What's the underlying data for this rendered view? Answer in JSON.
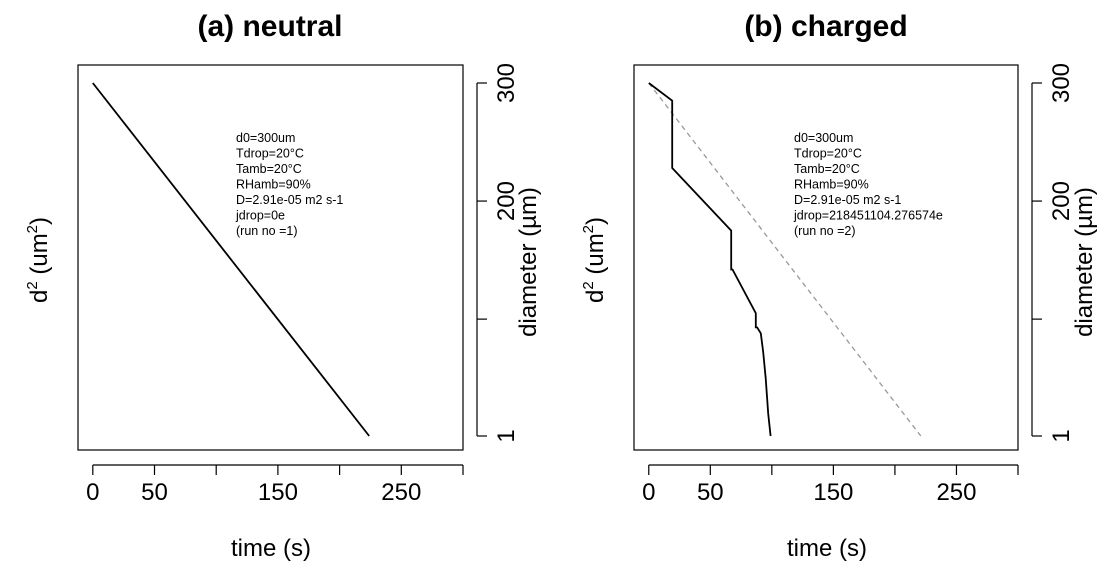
{
  "chart_data": [
    {
      "type": "line",
      "title": "(a) neutral",
      "xlabel": "time (s)",
      "ylabel_left_base": "d",
      "ylabel_left_exp": "2",
      "ylabel_left_unit_open": " (um",
      "ylabel_left_unit_exp": "2",
      "ylabel_left_unit_close": ")",
      "ylabel_right": "diameter (µm)",
      "xlim": [
        -12,
        300
      ],
      "x_ticks": [
        0,
        50,
        100,
        150,
        200,
        250,
        300
      ],
      "x_tick_labels": [
        "0",
        "50",
        "",
        "150",
        "",
        "250",
        ""
      ],
      "y_ticks_right": [
        1,
        100,
        200,
        300
      ],
      "y_tick_labels_right": [
        "1",
        "",
        "200",
        "300"
      ],
      "annotation": [
        "d0=300um",
        "Tdrop=20°C",
        "Tamb=20°C",
        "RHamb=90%",
        "D=2.91e-05 m2 s-1",
        "jdrop=0e",
        "(run no =1)"
      ],
      "series": [
        {
          "style": "solid",
          "color": "#000000",
          "x": [
            0,
            224
          ],
          "y": [
            300,
            1
          ]
        }
      ]
    },
    {
      "type": "line",
      "title": "(b) charged",
      "xlabel": "time (s)",
      "ylabel_left_base": "d",
      "ylabel_left_exp": "2",
      "ylabel_left_unit_open": " (um",
      "ylabel_left_unit_exp": "2",
      "ylabel_left_unit_close": ")",
      "ylabel_right": "diameter (µm)",
      "xlim": [
        -12,
        300
      ],
      "x_ticks": [
        0,
        50,
        100,
        150,
        200,
        250,
        300
      ],
      "x_tick_labels": [
        "0",
        "50",
        "",
        "150",
        "",
        "250",
        ""
      ],
      "y_ticks_right": [
        1,
        100,
        200,
        300
      ],
      "y_tick_labels_right": [
        "1",
        "",
        "200",
        "300"
      ],
      "annotation": [
        "d0=300um",
        "Tdrop=20°C",
        "Tamb=20°C",
        "RHamb=90%",
        "D=2.91e-05 m2 s-1",
        "jdrop=218451104.276574e",
        "(run no =2)"
      ],
      "series": [
        {
          "style": "dashed",
          "color": "#999999",
          "x": [
            0,
            221
          ],
          "y": [
            300,
            1
          ]
        },
        {
          "style": "solid",
          "color": "#000000",
          "x": [
            0,
            19,
            19,
            67,
            67,
            68,
            87,
            87,
            88,
            91,
            93,
            95,
            97,
            99
          ],
          "y": [
            300,
            285,
            228,
            175,
            142,
            142,
            105,
            93,
            93,
            88,
            72,
            50,
            20,
            1
          ]
        }
      ]
    }
  ]
}
